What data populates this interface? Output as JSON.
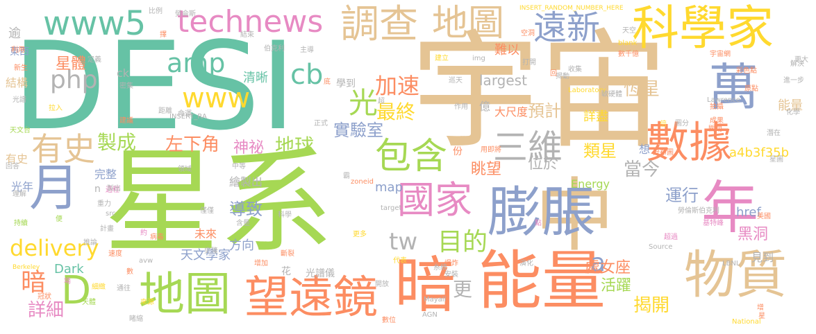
{
  "palette": {
    "green": "#a6d854",
    "teal": "#66c2a5",
    "tan": "#e5c494",
    "orange": "#fc8d62",
    "blue": "#8da0cb",
    "pink": "#e78ac3",
    "yellow": "#ffd92f",
    "gray": "#b3b3b3"
  },
  "words": [
    {
      "text": "DESI",
      "color": "teal"
    },
    {
      "text": "宇宙",
      "color": "tan"
    },
    {
      "text": "星系",
      "color": "green"
    },
    {
      "text": "中",
      "color": "tan"
    },
    {
      "text": "能量",
      "color": "orange"
    },
    {
      "text": "暗",
      "color": "orange"
    },
    {
      "text": "科學家",
      "color": "yellow"
    },
    {
      "text": "數據",
      "color": "orange"
    },
    {
      "text": "萬",
      "color": "blue"
    },
    {
      "text": "膨脹",
      "color": "blue"
    },
    {
      "text": "年",
      "color": "pink"
    },
    {
      "text": "物質",
      "color": "tan"
    },
    {
      "text": "地圖",
      "color": "green"
    },
    {
      "text": "望遠鏡",
      "color": "orange"
    },
    {
      "text": "調查",
      "color": "tan"
    },
    {
      "text": "地圖",
      "color": "tan"
    },
    {
      "text": "遠新",
      "color": "blue"
    },
    {
      "text": "國家",
      "color": "pink"
    },
    {
      "text": "包含",
      "color": "green"
    },
    {
      "text": "三維",
      "color": "gray"
    },
    {
      "text": "月",
      "color": "blue"
    },
    {
      "text": "www5",
      "color": "teal"
    },
    {
      "text": "technews",
      "color": "pink"
    },
    {
      "text": "有史",
      "color": "tan"
    },
    {
      "text": "www",
      "color": "yellow"
    },
    {
      "text": "amp",
      "color": "teal"
    },
    {
      "text": "php",
      "color": "gray"
    },
    {
      "text": "cb",
      "color": "teal"
    },
    {
      "text": "光",
      "color": "green"
    },
    {
      "text": "tw",
      "color": "gray"
    },
    {
      "text": "目的",
      "color": "green"
    },
    {
      "text": "delivery",
      "color": "yellow"
    },
    {
      "text": "D",
      "color": "green"
    },
    {
      "text": "a",
      "color": "blue"
    },
    {
      "text": "加速",
      "color": "orange"
    },
    {
      "text": "最終",
      "color": "yellow"
    },
    {
      "text": "實驗室",
      "color": "blue"
    },
    {
      "text": "製成",
      "color": "green"
    },
    {
      "text": "左下角",
      "color": "orange"
    },
    {
      "text": "神祕",
      "color": "pink"
    },
    {
      "text": "地球",
      "color": "green"
    },
    {
      "text": "恆星",
      "color": "tan"
    },
    {
      "text": "預計",
      "color": "tan"
    },
    {
      "text": "類星",
      "color": "yellow"
    },
    {
      "text": "當今",
      "color": "gray"
    },
    {
      "text": "運行",
      "color": "blue"
    },
    {
      "text": "導致",
      "color": "blue"
    },
    {
      "text": "位於",
      "color": "gray"
    },
    {
      "text": "眺望",
      "color": "orange"
    },
    {
      "text": "處女座",
      "color": "orange"
    },
    {
      "text": "活躍",
      "color": "green"
    },
    {
      "text": "揭開",
      "color": "yellow"
    },
    {
      "text": "更",
      "color": "gray"
    },
    {
      "text": "暗",
      "color": "orange"
    },
    {
      "text": "詳細",
      "color": "pink"
    },
    {
      "text": "黑洞",
      "color": "pink"
    },
    {
      "text": "能量",
      "color": "tan"
    },
    {
      "text": "方向",
      "color": "blue"
    },
    {
      "text": "未來",
      "color": "orange"
    },
    {
      "text": "天文學家",
      "color": "blue"
    },
    {
      "text": "光譜儀",
      "color": "gray"
    },
    {
      "text": "星體",
      "color": "orange"
    },
    {
      "text": "清晰",
      "color": "teal"
    },
    {
      "text": "難以",
      "color": "orange"
    },
    {
      "text": "largest",
      "color": "gray"
    },
    {
      "text": "億",
      "color": "gray"
    },
    {
      "text": "大尺度",
      "color": "orange"
    },
    {
      "text": "詳盡",
      "color": "yellow"
    },
    {
      "text": "Dark",
      "color": "teal"
    },
    {
      "text": "map",
      "color": "blue"
    },
    {
      "text": "Energy",
      "color": "green"
    },
    {
      "text": "a4b3f35b",
      "color": "yellow"
    },
    {
      "text": "href",
      "color": "blue"
    },
    {
      "text": "見到",
      "color": "gray"
    },
    {
      "text": "想",
      "color": "blue"
    },
    {
      "text": "完整",
      "color": "blue"
    },
    {
      "text": "光年",
      "color": "blue"
    },
    {
      "text": "繪製出",
      "color": "gray"
    },
    {
      "text": "有史",
      "color": "tan"
    },
    {
      "text": "結構",
      "color": "tan"
    },
    {
      "text": "ck",
      "color": "gray"
    },
    {
      "text": "n",
      "color": "gray"
    },
    {
      "text": "學到",
      "color": "gray"
    },
    {
      "text": "花",
      "color": "gray"
    },
    {
      "text": "份",
      "color": "orange"
    },
    {
      "text": "逾",
      "color": "gray"
    },
    {
      "text": "東西",
      "color": "blue"
    },
    {
      "text": "INSERT_RANDOM_NUMBER_HERE",
      "color": "yellow"
    },
    {
      "text": "INSERT_RA",
      "color": "gray"
    },
    {
      "text": "Laboratory",
      "color": "yellow"
    },
    {
      "text": "Lawrence",
      "color": "gray"
    },
    {
      "text": "Berkeley",
      "color": "yellow"
    },
    {
      "text": "National",
      "color": "yellow"
    },
    {
      "text": "LBNL",
      "color": "gray"
    },
    {
      "text": "AGN",
      "color": "gray"
    },
    {
      "text": "Mayall",
      "color": "gray"
    },
    {
      "text": "Source",
      "color": "gray"
    },
    {
      "text": "zoneid",
      "color": "orange"
    },
    {
      "text": "target",
      "color": "gray"
    },
    {
      "text": "src",
      "color": "gray"
    },
    {
      "text": "avw",
      "color": "gray"
    },
    {
      "text": "img",
      "color": "gray"
    },
    {
      "text": "blank",
      "color": "yellow"
    },
    {
      "text": "伯克利",
      "color": "gray"
    },
    {
      "text": "勞倫斯伯克利",
      "color": "gray"
    },
    {
      "text": "基特峰",
      "color": "pink"
    },
    {
      "text": "超過",
      "color": "pink"
    },
    {
      "text": "宇宙網",
      "color": "orange"
    },
    {
      "text": "軟硬體",
      "color": "gray"
    },
    {
      "text": "收集",
      "color": "gray"
    },
    {
      "text": "作用",
      "color": "gray"
    },
    {
      "text": "比例",
      "color": "gray"
    },
    {
      "text": "新生",
      "color": "orange"
    },
    {
      "text": "利用",
      "color": "orange"
    },
    {
      "text": "光譜",
      "color": "gray"
    },
    {
      "text": "天文台",
      "color": "green"
    },
    {
      "text": "理解",
      "color": "gray"
    },
    {
      "text": "病毒",
      "color": "orange"
    },
    {
      "text": "持續",
      "color": "green"
    },
    {
      "text": "距離",
      "color": "gray"
    },
    {
      "text": "美國",
      "color": "orange"
    },
    {
      "text": "解決",
      "color": "gray"
    },
    {
      "text": "進一步",
      "color": "gray"
    },
    {
      "text": "彩色點",
      "color": "orange"
    },
    {
      "text": "化學",
      "color": "gray"
    },
    {
      "text": "潛在",
      "color": "gray"
    },
    {
      "text": "星圖",
      "color": "gray"
    },
    {
      "text": "速度",
      "color": "orange"
    },
    {
      "text": "增加",
      "color": "orange"
    },
    {
      "text": "代表",
      "color": "yellow"
    },
    {
      "text": "天體",
      "color": "green"
    },
    {
      "text": "數位",
      "color": "orange"
    },
    {
      "text": "更多",
      "color": "yellow"
    },
    {
      "text": "科學",
      "color": "gray"
    },
    {
      "text": "含量",
      "color": "gray"
    },
    {
      "text": "計畫",
      "color": "gray"
    },
    {
      "text": "重力",
      "color": "gray"
    },
    {
      "text": "爆炸",
      "color": "orange"
    },
    {
      "text": "演化",
      "color": "gray"
    },
    {
      "text": "糸統",
      "color": "gray"
    },
    {
      "text": "安裝",
      "color": "gray"
    },
    {
      "text": "開放",
      "color": "gray"
    },
    {
      "text": "領域",
      "color": "gray"
    },
    {
      "text": "命運",
      "color": "gray"
    },
    {
      "text": "正式",
      "color": "gray"
    },
    {
      "text": "建議",
      "color": "orange"
    },
    {
      "text": "拉入",
      "color": "yellow"
    },
    {
      "text": "巡天",
      "color": "gray"
    },
    {
      "text": "打開",
      "color": "gray"
    },
    {
      "text": "揭動",
      "color": "gray"
    },
    {
      "text": "勞侖斯",
      "color": "gray"
    },
    {
      "text": "結束",
      "color": "gray"
    },
    {
      "text": "主導",
      "color": "gray"
    },
    {
      "text": "天空",
      "color": "gray"
    },
    {
      "text": "建立",
      "color": "yellow"
    },
    {
      "text": "空洞",
      "color": "orange"
    },
    {
      "text": "數千億",
      "color": "orange"
    },
    {
      "text": "更大",
      "color": "gray"
    },
    {
      "text": "原點",
      "color": "orange"
    },
    {
      "text": "拍攝",
      "color": "orange"
    },
    {
      "text": "成果",
      "color": "orange"
    },
    {
      "text": "關閉",
      "color": "orange"
    },
    {
      "text": "圖分",
      "color": "gray"
    },
    {
      "text": "分布圖",
      "color": "orange"
    },
    {
      "text": "倍",
      "color": "yellow"
    },
    {
      "text": "用即將",
      "color": "orange"
    },
    {
      "text": "過程",
      "color": "pink"
    },
    {
      "text": "製出",
      "color": "gray"
    },
    {
      "text": "中等",
      "color": "gray"
    },
    {
      "text": "回答",
      "color": "gray"
    },
    {
      "text": "密集",
      "color": "gray"
    },
    {
      "text": "定義",
      "color": "gray"
    },
    {
      "text": "推論",
      "color": "gray"
    },
    {
      "text": "史隆",
      "color": "gray"
    },
    {
      "text": "斷裂",
      "color": "orange"
    },
    {
      "text": "僅僅",
      "color": "gray"
    },
    {
      "text": "冠狀",
      "color": "orange"
    },
    {
      "text": "細緻",
      "color": "yellow"
    },
    {
      "text": "通往",
      "color": "gray"
    },
    {
      "text": "來源",
      "color": "yellow"
    },
    {
      "text": "睹縮",
      "color": "gray"
    },
    {
      "text": "場",
      "color": "pink"
    },
    {
      "text": "約",
      "color": "pink"
    },
    {
      "text": "點",
      "color": "pink"
    },
    {
      "text": "數",
      "color": "orange"
    },
    {
      "text": "便",
      "color": "green"
    },
    {
      "text": "星",
      "color": "orange"
    },
    {
      "text": "回",
      "color": "orange"
    },
    {
      "text": "霸",
      "color": "gray"
    },
    {
      "text": "超",
      "color": "gray"
    },
    {
      "text": "底",
      "color": "orange"
    },
    {
      "text": "增",
      "color": "orange"
    },
    {
      "text": "擇",
      "color": "orange"
    }
  ]
}
